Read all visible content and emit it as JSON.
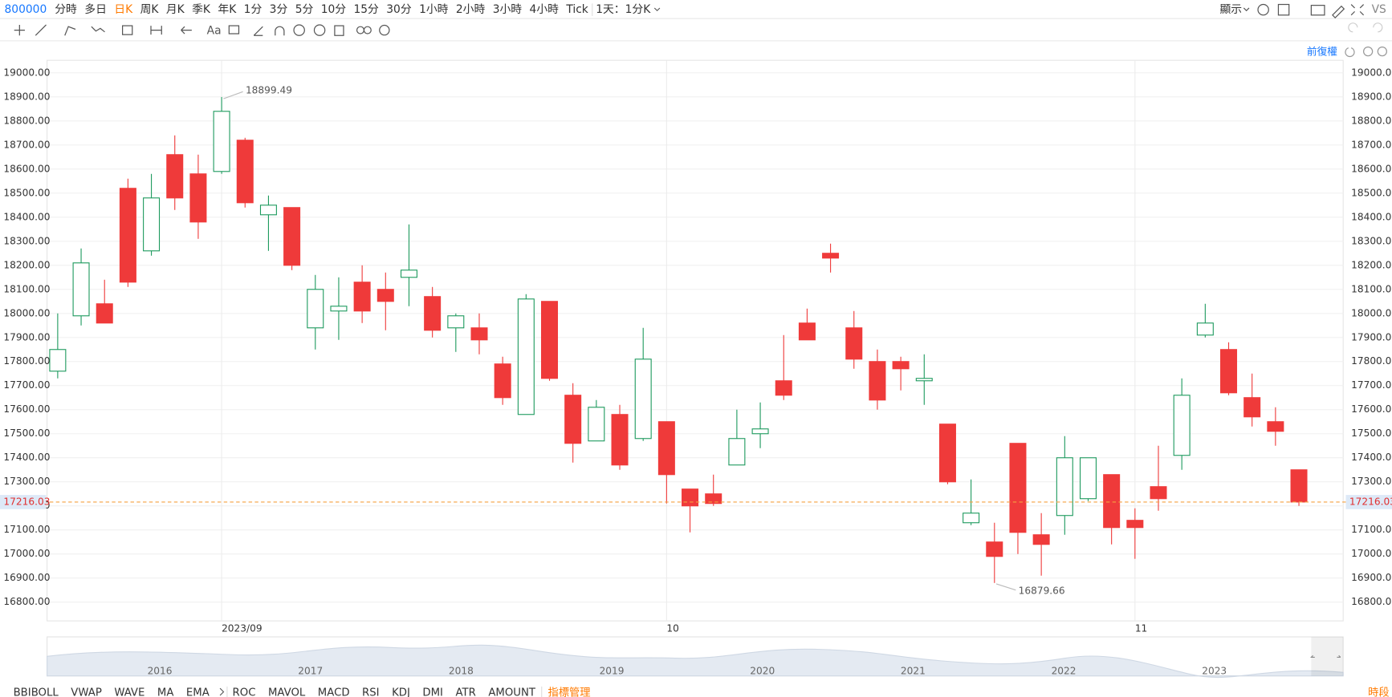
{
  "toolbar": {
    "symbol": "800000",
    "periods": [
      "分時",
      "多日",
      "日K",
      "周K",
      "月K",
      "季K",
      "年K",
      "1分",
      "3分",
      "5分",
      "10分",
      "15分",
      "30分",
      "1小時",
      "2小時",
      "3小時",
      "4小時",
      "Tick",
      "1天：1分K"
    ],
    "active_period": 2,
    "display": "顯示",
    "vs": "VS",
    "text_tool": "Aa"
  },
  "adjust_label": "前復權",
  "chart_data": {
    "type": "candlestick",
    "categories": [
      null,
      null,
      null,
      null,
      null,
      null,
      null,
      "2023/09",
      null,
      null,
      null,
      null,
      null,
      null,
      null,
      null,
      null,
      null,
      null,
      null,
      null,
      null,
      null,
      null,
      null,
      null,
      "10",
      null,
      null,
      null,
      null,
      null,
      null,
      null,
      null,
      null,
      null,
      null,
      null,
      null,
      null,
      null,
      null,
      null,
      null,
      null,
      "11",
      null,
      null,
      null,
      null,
      null,
      null,
      null
    ],
    "open": [
      17760,
      17990,
      18040,
      18520,
      18260,
      18660,
      18580,
      18590,
      18720,
      18410,
      18440,
      17940,
      18010,
      18130,
      18100,
      18150,
      18070,
      17940,
      17940,
      17790,
      17580,
      18050,
      17660,
      17470,
      17580,
      17480,
      17550,
      17270,
      17250,
      17370,
      17500,
      17720,
      17960,
      18250,
      17940,
      17800,
      17800,
      17720,
      17540,
      17130,
      17050,
      17460,
      17080,
      17160,
      17230,
      17330,
      17140,
      17280,
      17410,
      17910,
      17850,
      17650,
      17550,
      17350
    ],
    "high": [
      18000,
      18270,
      18140,
      18560,
      18580,
      18740,
      18660,
      18899.49,
      18730,
      18490,
      18440,
      18160,
      18150,
      18200,
      18170,
      18370,
      18110,
      18000,
      18000,
      17820,
      18080,
      18050,
      17710,
      17640,
      17620,
      17940,
      17550,
      17270,
      17330,
      17600,
      17630,
      17910,
      18020,
      18290,
      18010,
      17850,
      17820,
      17830,
      17540,
      17310,
      17130,
      17460,
      17170,
      17490,
      17400,
      17330,
      17190,
      17450,
      17730,
      18040,
      17880,
      17750,
      17610,
      17350
    ],
    "low": [
      17730,
      17950,
      17960,
      18110,
      18240,
      18430,
      18310,
      18580,
      18440,
      18260,
      18180,
      17850,
      17890,
      17960,
      17930,
      18030,
      17900,
      17840,
      17830,
      17620,
      17580,
      17720,
      17380,
      17470,
      17350,
      17470,
      17210,
      17090,
      17200,
      17370,
      17440,
      17640,
      17890,
      18170,
      17770,
      17600,
      17680,
      17620,
      17290,
      17120,
      16879.66,
      17000,
      16910,
      17080,
      17220,
      17040,
      16980,
      17180,
      17350,
      17900,
      17660,
      17530,
      17450,
      17200
    ],
    "close": [
      17850,
      18210,
      17960,
      18130,
      18480,
      18480,
      18380,
      18840,
      18460,
      18450,
      18200,
      18100,
      18030,
      18010,
      18050,
      18180,
      17930,
      17990,
      17890,
      17650,
      18060,
      17730,
      17460,
      17610,
      17370,
      17810,
      17330,
      17200,
      17210,
      17480,
      17520,
      17660,
      17890,
      18230,
      17810,
      17640,
      17770,
      17730,
      17300,
      17170,
      16990,
      17090,
      17040,
      17400,
      17400,
      17110,
      17110,
      17230,
      17660,
      17960,
      17670,
      17570,
      17510,
      17216.03
    ],
    "up_color": "#1e9a5e",
    "down_color": "#ef3a3a",
    "current_price": 17216.03,
    "price_line_color": "#f5a040",
    "grid": true,
    "ylim": [
      16722,
      19052
    ],
    "yticks": [
      {
        "value": 16800,
        "label": "16800.00"
      },
      {
        "value": 16900,
        "label": "16900.00"
      },
      {
        "value": 17000,
        "label": "17000.00"
      },
      {
        "value": 17100,
        "label": "17100.00"
      },
      {
        "value": 17200,
        "label": "17200.00"
      },
      {
        "value": 17300,
        "label": "17300.00"
      },
      {
        "value": 17400,
        "label": "17400.00"
      },
      {
        "value": 17500,
        "label": "17500.00"
      },
      {
        "value": 17600,
        "label": "17600.00"
      },
      {
        "value": 17700,
        "label": "17700.00"
      },
      {
        "value": 17800,
        "label": "17800.00"
      },
      {
        "value": 17900,
        "label": "17900.00"
      },
      {
        "value": 18000,
        "label": "18000.00"
      },
      {
        "value": 18100,
        "label": "18100.00"
      },
      {
        "value": 18200,
        "label": "18200.00"
      },
      {
        "value": 18300,
        "label": "18300.00"
      },
      {
        "value": 18400,
        "label": "18400.00"
      },
      {
        "value": 18500,
        "label": "18500.00"
      },
      {
        "value": 18600,
        "label": "18600.00"
      },
      {
        "value": 18700,
        "label": "18700.00"
      },
      {
        "value": 18800,
        "label": "18800.00"
      },
      {
        "value": 18900,
        "label": "18900.00"
      },
      {
        "value": 19000,
        "label": "19000.00"
      }
    ]
  },
  "navigator": {
    "years": [
      "2016",
      "2017",
      "2018",
      "2019",
      "2020",
      "2021",
      "2022",
      "2023"
    ]
  },
  "indicators": {
    "items": [
      "BBIBOLL",
      "VWAP",
      "WAVE",
      "MA",
      "EMA",
      "ROC",
      "MAVOL",
      "MACD",
      "RSI",
      "KDJ",
      "DMI",
      "ATR",
      "AMOUNT"
    ],
    "manage": "指標管理"
  },
  "session_label": "時段"
}
